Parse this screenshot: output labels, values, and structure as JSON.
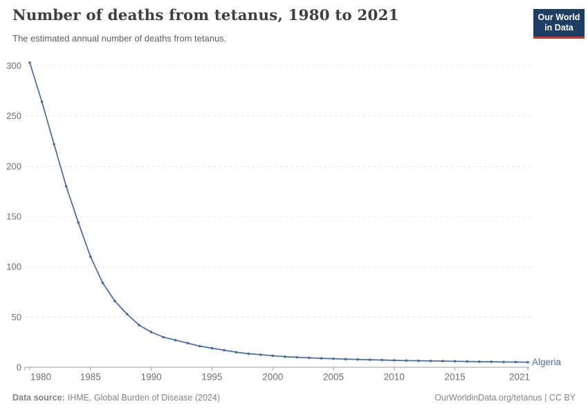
{
  "header": {
    "title": "Number of deaths from tetanus, 1980 to 2021",
    "subtitle": "The estimated annual number of deaths from tetanus.",
    "logo": {
      "line1": "Our World",
      "line2": "in Data",
      "bg_color": "#1d3d63",
      "accent_color": "#d3382c"
    }
  },
  "chart_data": {
    "type": "line",
    "title": "Number of deaths from tetanus, 1980 to 2021",
    "subtitle": "The estimated annual number of deaths from tetanus.",
    "xlabel": "",
    "ylabel": "",
    "xlim": [
      1980,
      2021
    ],
    "ylim": [
      0,
      300
    ],
    "x_ticks": [
      1980,
      1985,
      1990,
      1995,
      2000,
      2005,
      2010,
      2015,
      2021
    ],
    "y_ticks": [
      0,
      50,
      100,
      150,
      200,
      250,
      300
    ],
    "grid": "horizontal-dashed",
    "legend_position": "end-of-line-label",
    "entity_label": "Algeria",
    "colors": {
      "line": "#4569a5",
      "entity_label": "#4f6fa8",
      "grid": "#e4e4e4",
      "axis": "#9a9a9a",
      "tick_text": "#6f6f6f"
    },
    "series": [
      {
        "name": "Algeria",
        "x": [
          1980,
          1981,
          1982,
          1983,
          1984,
          1985,
          1986,
          1987,
          1988,
          1989,
          1990,
          1991,
          1992,
          1993,
          1994,
          1995,
          1996,
          1997,
          1998,
          1999,
          2000,
          2001,
          2002,
          2003,
          2004,
          2005,
          2006,
          2007,
          2008,
          2009,
          2010,
          2011,
          2012,
          2013,
          2014,
          2015,
          2016,
          2017,
          2018,
          2019,
          2020,
          2021
        ],
        "values": [
          303,
          264,
          222,
          180,
          144,
          110,
          84,
          66,
          53,
          42,
          35,
          30,
          27,
          24,
          21,
          19,
          17,
          15,
          13.5,
          12.5,
          11.5,
          10.5,
          10,
          9.4,
          8.9,
          8.5,
          8.1,
          7.8,
          7.5,
          7.2,
          6.9,
          6.7,
          6.5,
          6.3,
          6.1,
          6.0,
          5.8,
          5.6,
          5.5,
          5.3,
          5.2,
          5.0
        ]
      }
    ]
  },
  "footer": {
    "source_label": "Data source:",
    "source_text": "IHME, Global Burden of Disease (2024)",
    "credit": "OurWorldinData.org/tetanus | CC BY"
  }
}
